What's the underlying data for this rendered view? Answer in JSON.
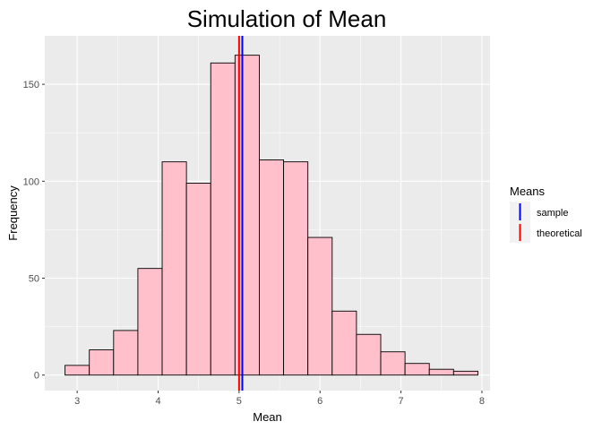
{
  "chart_data": {
    "type": "bar",
    "title": "Simulation of Mean",
    "xlabel": "Mean",
    "ylabel": "Frequency",
    "xlim": [
      2.6,
      8.1
    ],
    "ylim": [
      -8,
      175
    ],
    "x_ticks": [
      3,
      4,
      5,
      6,
      7,
      8
    ],
    "y_ticks": [
      0,
      50,
      100,
      150
    ],
    "grid": true,
    "bin_width": 0.3,
    "bins": [
      {
        "x0": 2.85,
        "x1": 3.15,
        "value": 5
      },
      {
        "x0": 3.15,
        "x1": 3.45,
        "value": 13
      },
      {
        "x0": 3.45,
        "x1": 3.75,
        "value": 23
      },
      {
        "x0": 3.75,
        "x1": 4.05,
        "value": 55
      },
      {
        "x0": 4.05,
        "x1": 4.35,
        "value": 110
      },
      {
        "x0": 4.35,
        "x1": 4.65,
        "value": 99
      },
      {
        "x0": 4.65,
        "x1": 4.95,
        "value": 161
      },
      {
        "x0": 4.95,
        "x1": 5.25,
        "value": 165
      },
      {
        "x0": 5.25,
        "x1": 5.55,
        "value": 111
      },
      {
        "x0": 5.55,
        "x1": 5.85,
        "value": 110
      },
      {
        "x0": 5.85,
        "x1": 6.15,
        "value": 71
      },
      {
        "x0": 6.15,
        "x1": 6.45,
        "value": 33
      },
      {
        "x0": 6.45,
        "x1": 6.75,
        "value": 21
      },
      {
        "x0": 6.75,
        "x1": 7.05,
        "value": 12
      },
      {
        "x0": 7.05,
        "x1": 7.35,
        "value": 6
      },
      {
        "x0": 7.35,
        "x1": 7.65,
        "value": 3
      },
      {
        "x0": 7.65,
        "x1": 7.95,
        "value": 2
      }
    ],
    "bar_fill": "#ffc0cb",
    "bar_stroke": "#000000",
    "panel_background": "#ebebeb",
    "vlines": [
      {
        "name": "sample",
        "x": 5.04,
        "color": "#0000ff"
      },
      {
        "name": "theoretical",
        "x": 5.0,
        "color": "#ff0000"
      }
    ],
    "legend": {
      "title": "Means",
      "position": "right",
      "items": [
        {
          "label": "sample",
          "color": "#0000ff"
        },
        {
          "label": "theoretical",
          "color": "#ff0000"
        }
      ]
    }
  }
}
